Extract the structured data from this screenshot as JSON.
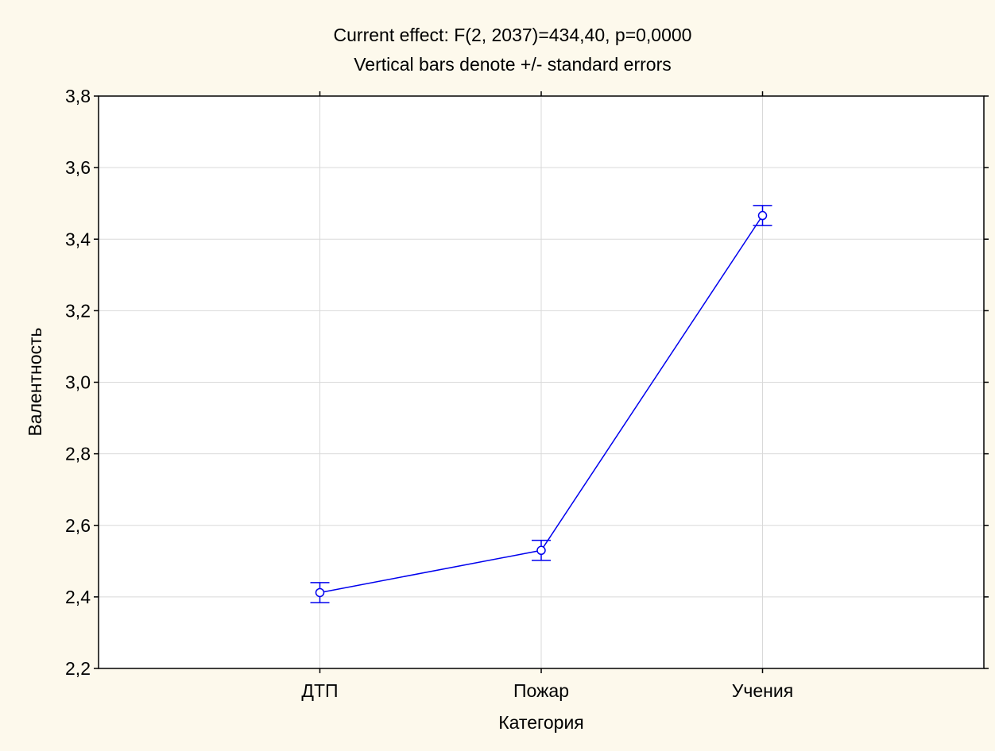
{
  "chart_data": {
    "type": "line",
    "title": "Current effect: F(2, 2037)=434,40, p=0,0000",
    "subtitle": "Vertical bars denote +/- standard errors",
    "xlabel": "Категория",
    "ylabel": "Валентность",
    "categories": [
      "ДТП",
      "Пожар",
      "Учения"
    ],
    "series": [
      {
        "values": [
          2.412,
          2.53,
          3.466
        ],
        "error": [
          0.028,
          0.028,
          0.028
        ]
      }
    ],
    "ylim": [
      2.2,
      3.8
    ],
    "yticks": [
      2.2,
      2.4,
      2.6,
      2.8,
      3.0,
      3.2,
      3.4,
      3.6,
      3.8
    ],
    "ytick_labels": [
      "2,2",
      "2,4",
      "2,6",
      "2,8",
      "3,0",
      "3,2",
      "3,4",
      "3,6",
      "3,8"
    ],
    "grid": true,
    "colors": {
      "background": "#fdf9ec",
      "plot_background": "#ffffff",
      "series": "#0000ee",
      "grid": "#d9d9d9",
      "axis": "#000000"
    }
  }
}
